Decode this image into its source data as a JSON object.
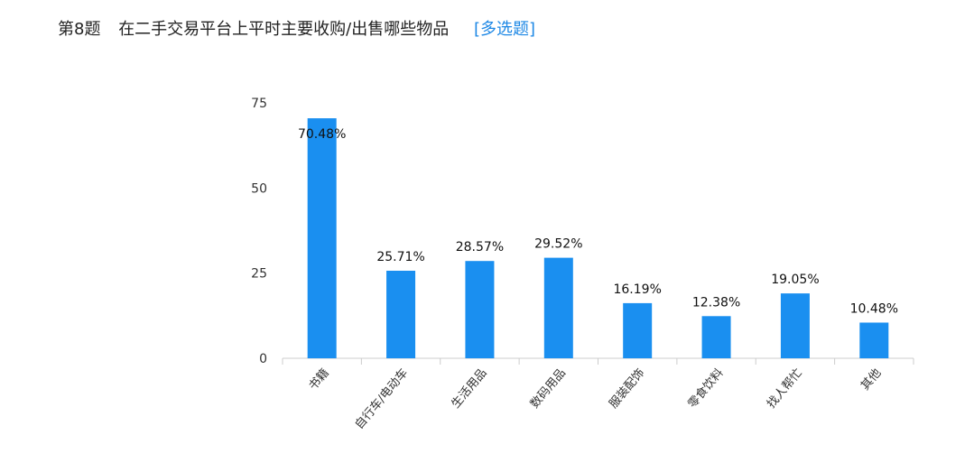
{
  "header": {
    "question_number": "第8题",
    "question_text": "在二手交易平台上平时主要收购/出售哪些物品",
    "question_type": "[多选题]"
  },
  "chart_data": {
    "type": "bar",
    "title": "",
    "xlabel": "",
    "ylabel": "",
    "ylim": [
      0,
      75
    ],
    "yticks": [
      0,
      25,
      50,
      75
    ],
    "grid": false,
    "bar_color": "#1a8ff0",
    "categories": [
      "书籍",
      "自行车/电动车",
      "生活用品",
      "数码用品",
      "服装配饰",
      "零食饮料",
      "找人帮忙",
      "其他"
    ],
    "values": [
      70.48,
      25.71,
      28.57,
      29.52,
      16.19,
      12.38,
      19.05,
      10.48
    ],
    "data_labels": [
      "70.48%",
      "25.71%",
      "28.57%",
      "29.52%",
      "16.19%",
      "12.38%",
      "19.05%",
      "10.48%"
    ]
  }
}
